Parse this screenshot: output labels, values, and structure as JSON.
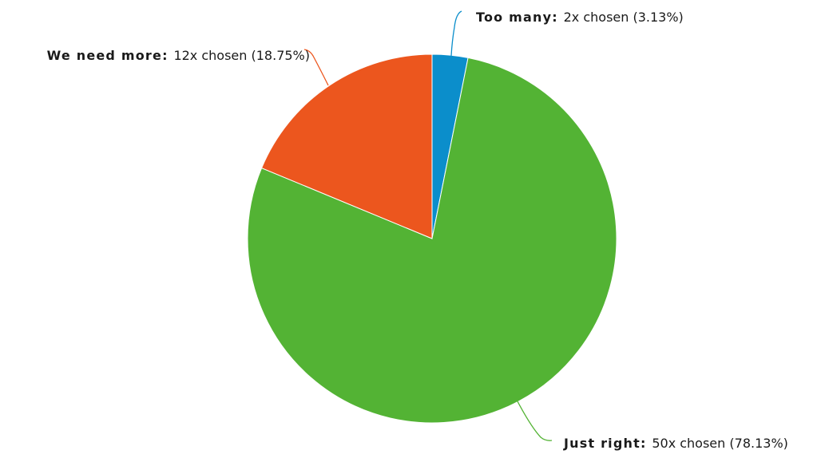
{
  "chart_data": {
    "type": "pie",
    "title": "",
    "slices": [
      {
        "name": "Too many",
        "count": 2,
        "count_text": "2x chosen",
        "percent": 3.13,
        "percent_text": "(3.13%)",
        "color": "#0b8ecb"
      },
      {
        "name": "Just right",
        "count": 50,
        "count_text": "50x chosen",
        "percent": 78.13,
        "percent_text": "(78.13%)",
        "color": "#53b334"
      },
      {
        "name": "We need more",
        "count": 12,
        "count_text": "12x chosen",
        "percent": 18.75,
        "percent_text": "(18.75%)",
        "color": "#ec561e"
      }
    ]
  }
}
